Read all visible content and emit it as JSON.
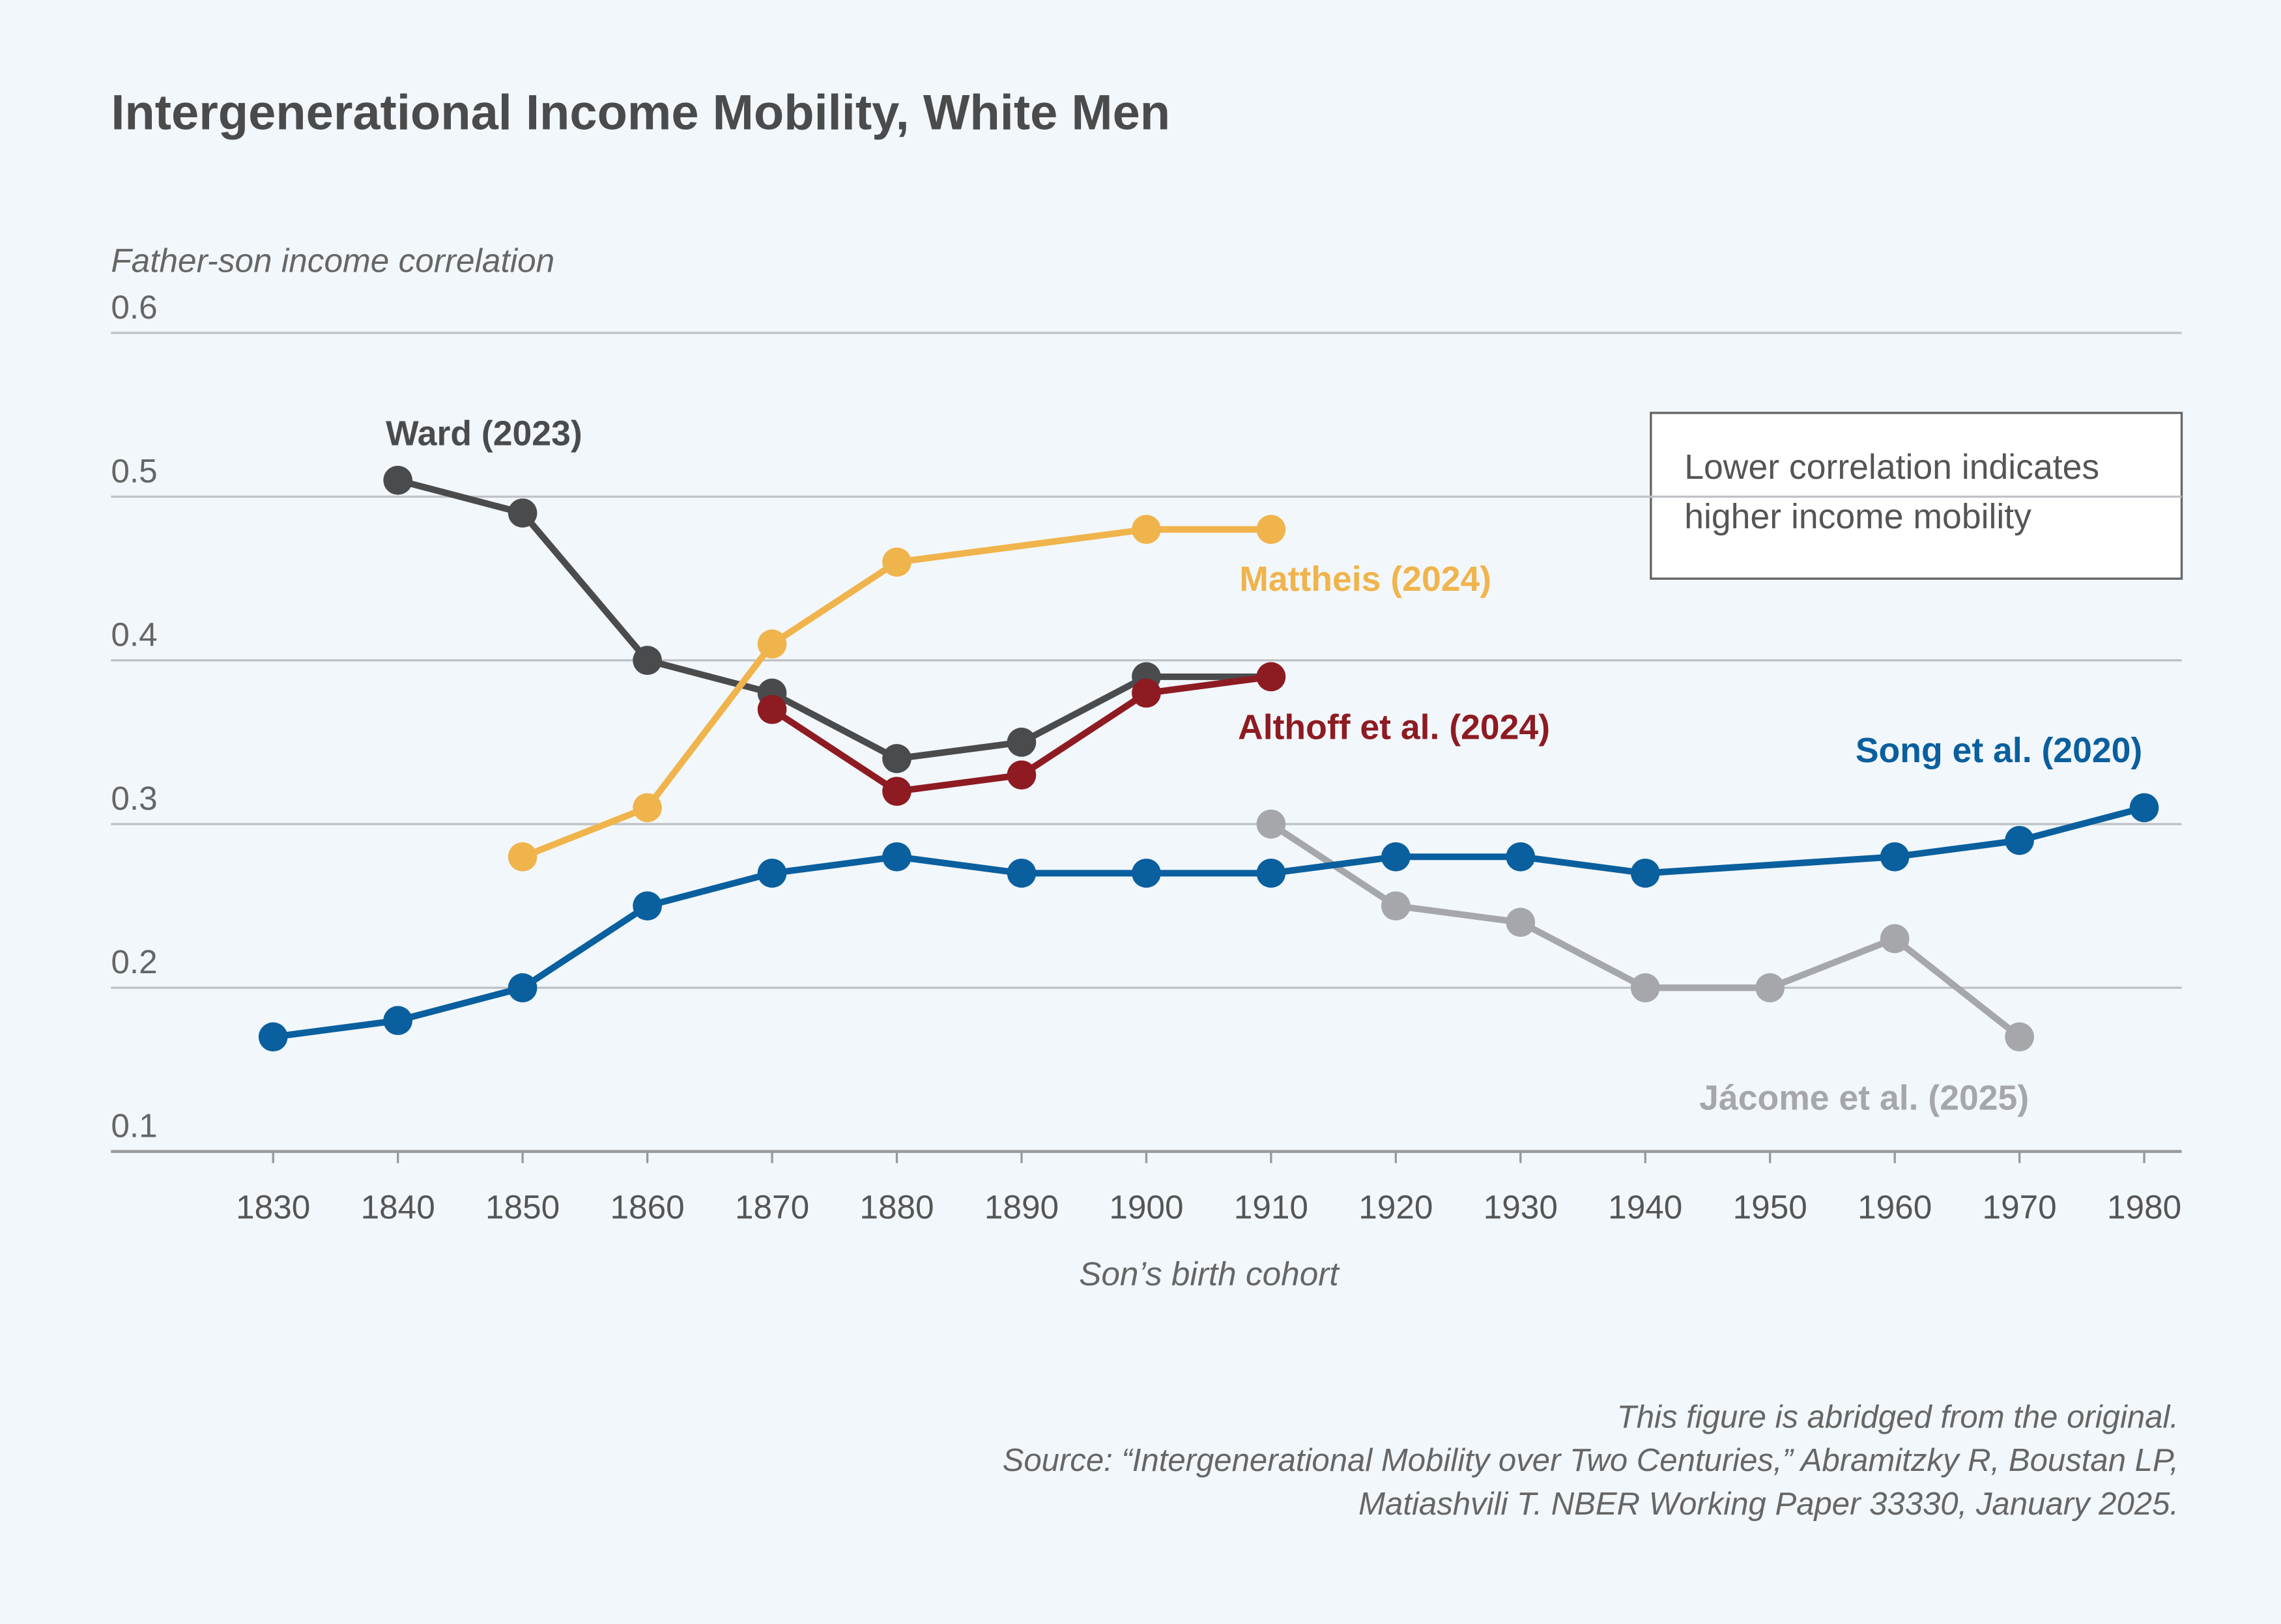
{
  "chart_data": {
    "type": "line",
    "title": "Intergenerational Income Mobility, White Men",
    "y_label": "Father-son income correlation",
    "x_label": "Son’s birth cohort",
    "annotation": [
      "Lower correlation indicates",
      "higher income mobility"
    ],
    "notes": [
      "This figure is abridged from the original.",
      "Source: “Intergenerational Mobility over Two Centuries,” Abramitzky R, Boustan LP,",
      "Matiashvili T. NBER Working Paper 33330, January 2025."
    ],
    "xlim": [
      1817,
      1983
    ],
    "ylim": [
      0.1,
      0.6
    ],
    "xticks": [
      1830,
      1840,
      1850,
      1860,
      1870,
      1880,
      1890,
      1900,
      1910,
      1920,
      1930,
      1940,
      1950,
      1960,
      1970,
      1980
    ],
    "yticks": [
      0.1,
      0.2,
      0.3,
      0.4,
      0.5,
      0.6
    ],
    "grid": true,
    "series": [
      {
        "name": "Ward (2023)",
        "color": "#4a4b4d",
        "x": [
          1840,
          1850,
          1860,
          1870,
          1880,
          1890,
          1900,
          1910
        ],
        "values": [
          0.51,
          0.49,
          0.4,
          0.38,
          0.34,
          0.35,
          0.39,
          0.39
        ]
      },
      {
        "name": "Mattheis (2024)",
        "color": "#f0b44c",
        "x": [
          1850,
          1860,
          1870,
          1880,
          1900,
          1910
        ],
        "values": [
          0.28,
          0.31,
          0.41,
          0.46,
          0.48,
          0.48
        ]
      },
      {
        "name": "Althoff et al. (2024)",
        "color": "#8e1b22",
        "x": [
          1870,
          1880,
          1890,
          1900,
          1910
        ],
        "values": [
          0.37,
          0.32,
          0.33,
          0.38,
          0.39
        ]
      },
      {
        "name": "Jácome et al. (2025)",
        "color": "#a5a7aa",
        "x": [
          1910,
          1920,
          1930,
          1940,
          1950,
          1960,
          1970
        ],
        "values": [
          0.3,
          0.25,
          0.24,
          0.2,
          0.2,
          0.23,
          0.17
        ]
      },
      {
        "name": "Song et al. (2020)",
        "color": "#0a5f9e",
        "x": [
          1830,
          1840,
          1850,
          1860,
          1870,
          1880,
          1890,
          1900,
          1910,
          1920,
          1930,
          1940,
          1960,
          1970,
          1980
        ],
        "values": [
          0.17,
          0.18,
          0.2,
          0.25,
          0.27,
          0.28,
          0.27,
          0.27,
          0.27,
          0.28,
          0.28,
          0.27,
          0.28,
          0.29,
          0.31
        ]
      }
    ]
  }
}
